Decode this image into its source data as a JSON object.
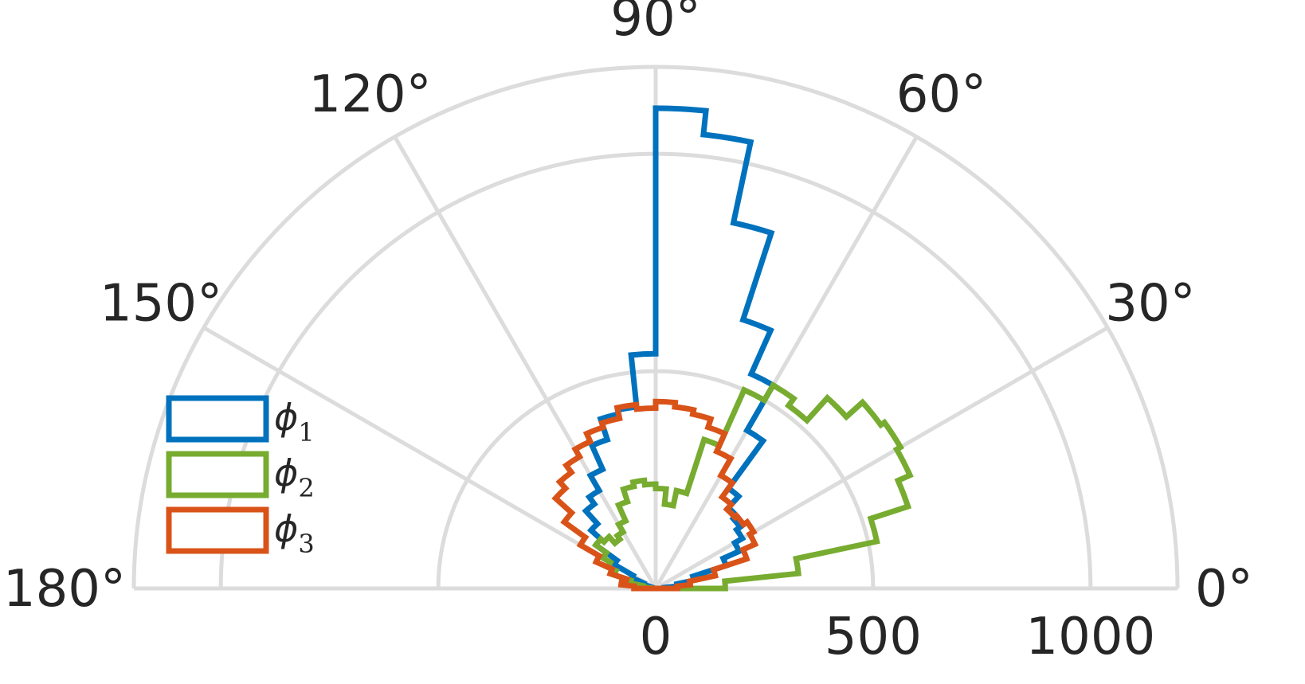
{
  "chart_data": {
    "type": "polar-histogram",
    "theta_range_deg": [
      0,
      180
    ],
    "r_range": [
      0,
      1200
    ],
    "r_ticks": [
      0,
      500,
      1000
    ],
    "r_circles": [
      500,
      1000,
      1200
    ],
    "theta_ticks_deg": [
      0,
      30,
      60,
      90,
      120,
      150,
      180
    ],
    "theta_tick_labels": [
      "0°",
      "30°",
      "60°",
      "90°",
      "120°",
      "150°",
      "180°"
    ],
    "r_tick_labels": [
      "0",
      "500",
      "1000"
    ],
    "grid": true,
    "legend_position": "left",
    "bin_width_deg": 6,
    "bin_start_deg": [
      0,
      6,
      12,
      18,
      24,
      30,
      36,
      42,
      48,
      54,
      60,
      66,
      72,
      78,
      84,
      90,
      96,
      102,
      108,
      114,
      120,
      126,
      132,
      138,
      144,
      150,
      156,
      162,
      168,
      174
    ],
    "series": [
      {
        "name": "ϕ",
        "sub": "1",
        "color": "#0072BD",
        "values": [
          20,
          50,
          90,
          170,
          210,
          230,
          240,
          250,
          285,
          420,
          540,
          650,
          860,
          1050,
          1105,
          540,
          420,
          410,
          360,
          300,
          260,
          240,
          200,
          170,
          110,
          60,
          30,
          10,
          10,
          10
        ]
      },
      {
        "name": "ϕ",
        "sub": "2",
        "color": "#77AC30",
        "values": [
          160,
          330,
          520,
          610,
          640,
          650,
          640,
          590,
          520,
          540,
          500,
          360,
          230,
          195,
          230,
          240,
          250,
          240,
          210,
          170,
          150,
          140,
          160,
          170,
          140,
          120,
          100,
          60,
          30,
          10
        ]
      },
      {
        "name": "ϕ",
        "sub": "3",
        "color": "#D95319",
        "values": [
          50,
          80,
          140,
          220,
          250,
          260,
          250,
          245,
          260,
          300,
          345,
          390,
          410,
          420,
          430,
          415,
          425,
          400,
          390,
          370,
          350,
          330,
          310,
          260,
          200,
          150,
          110,
          70,
          80,
          50
        ]
      }
    ]
  }
}
